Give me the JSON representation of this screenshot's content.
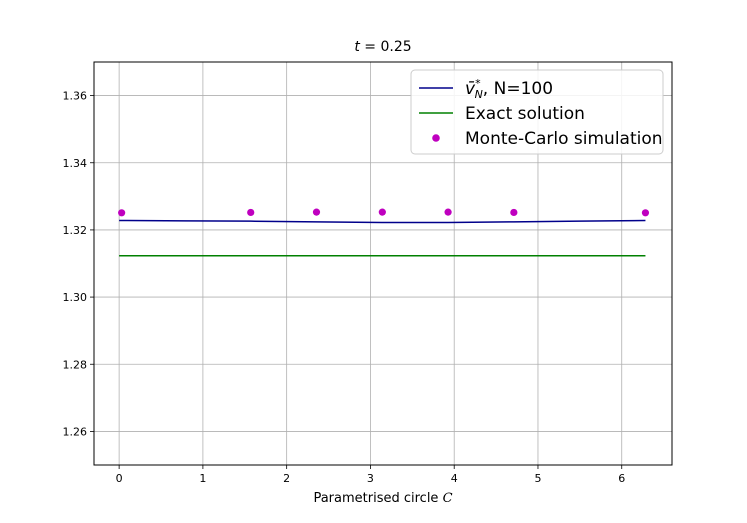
{
  "chart_data": {
    "type": "line",
    "title": "t = 0.25",
    "xlabel": "Parametrised circle C",
    "ylabel": "",
    "xlim": [
      -0.3,
      6.6
    ],
    "ylim": [
      1.25,
      1.37
    ],
    "xticks": [
      0,
      1,
      2,
      3,
      4,
      5,
      6
    ],
    "yticks": [
      1.26,
      1.28,
      1.3,
      1.32,
      1.34,
      1.36
    ],
    "ytick_labels": [
      "1.26",
      "1.28",
      "1.30",
      "1.32",
      "1.34",
      "1.36"
    ],
    "grid": true,
    "legend_position": "top-right",
    "series": [
      {
        "name": "v̄*N, N=100",
        "kind": "line",
        "color": "#00008b",
        "x": [
          0.0,
          0.785,
          1.571,
          2.356,
          3.142,
          3.927,
          4.712,
          5.498,
          6.283
        ],
        "y": [
          1.3228,
          1.3227,
          1.3226,
          1.3224,
          1.3222,
          1.3222,
          1.3224,
          1.3226,
          1.3228
        ]
      },
      {
        "name": "Exact solution",
        "kind": "line",
        "color": "#008000",
        "x": [
          0.0,
          6.283
        ],
        "y": [
          1.3123,
          1.3123
        ]
      },
      {
        "name": "Monte-Carlo simulation",
        "kind": "scatter",
        "color": "#bf00bf",
        "x": [
          0.03,
          1.571,
          2.356,
          3.142,
          3.927,
          4.712,
          6.283
        ],
        "y": [
          1.3251,
          1.3252,
          1.3253,
          1.3253,
          1.3253,
          1.3252,
          1.3251
        ]
      }
    ]
  }
}
